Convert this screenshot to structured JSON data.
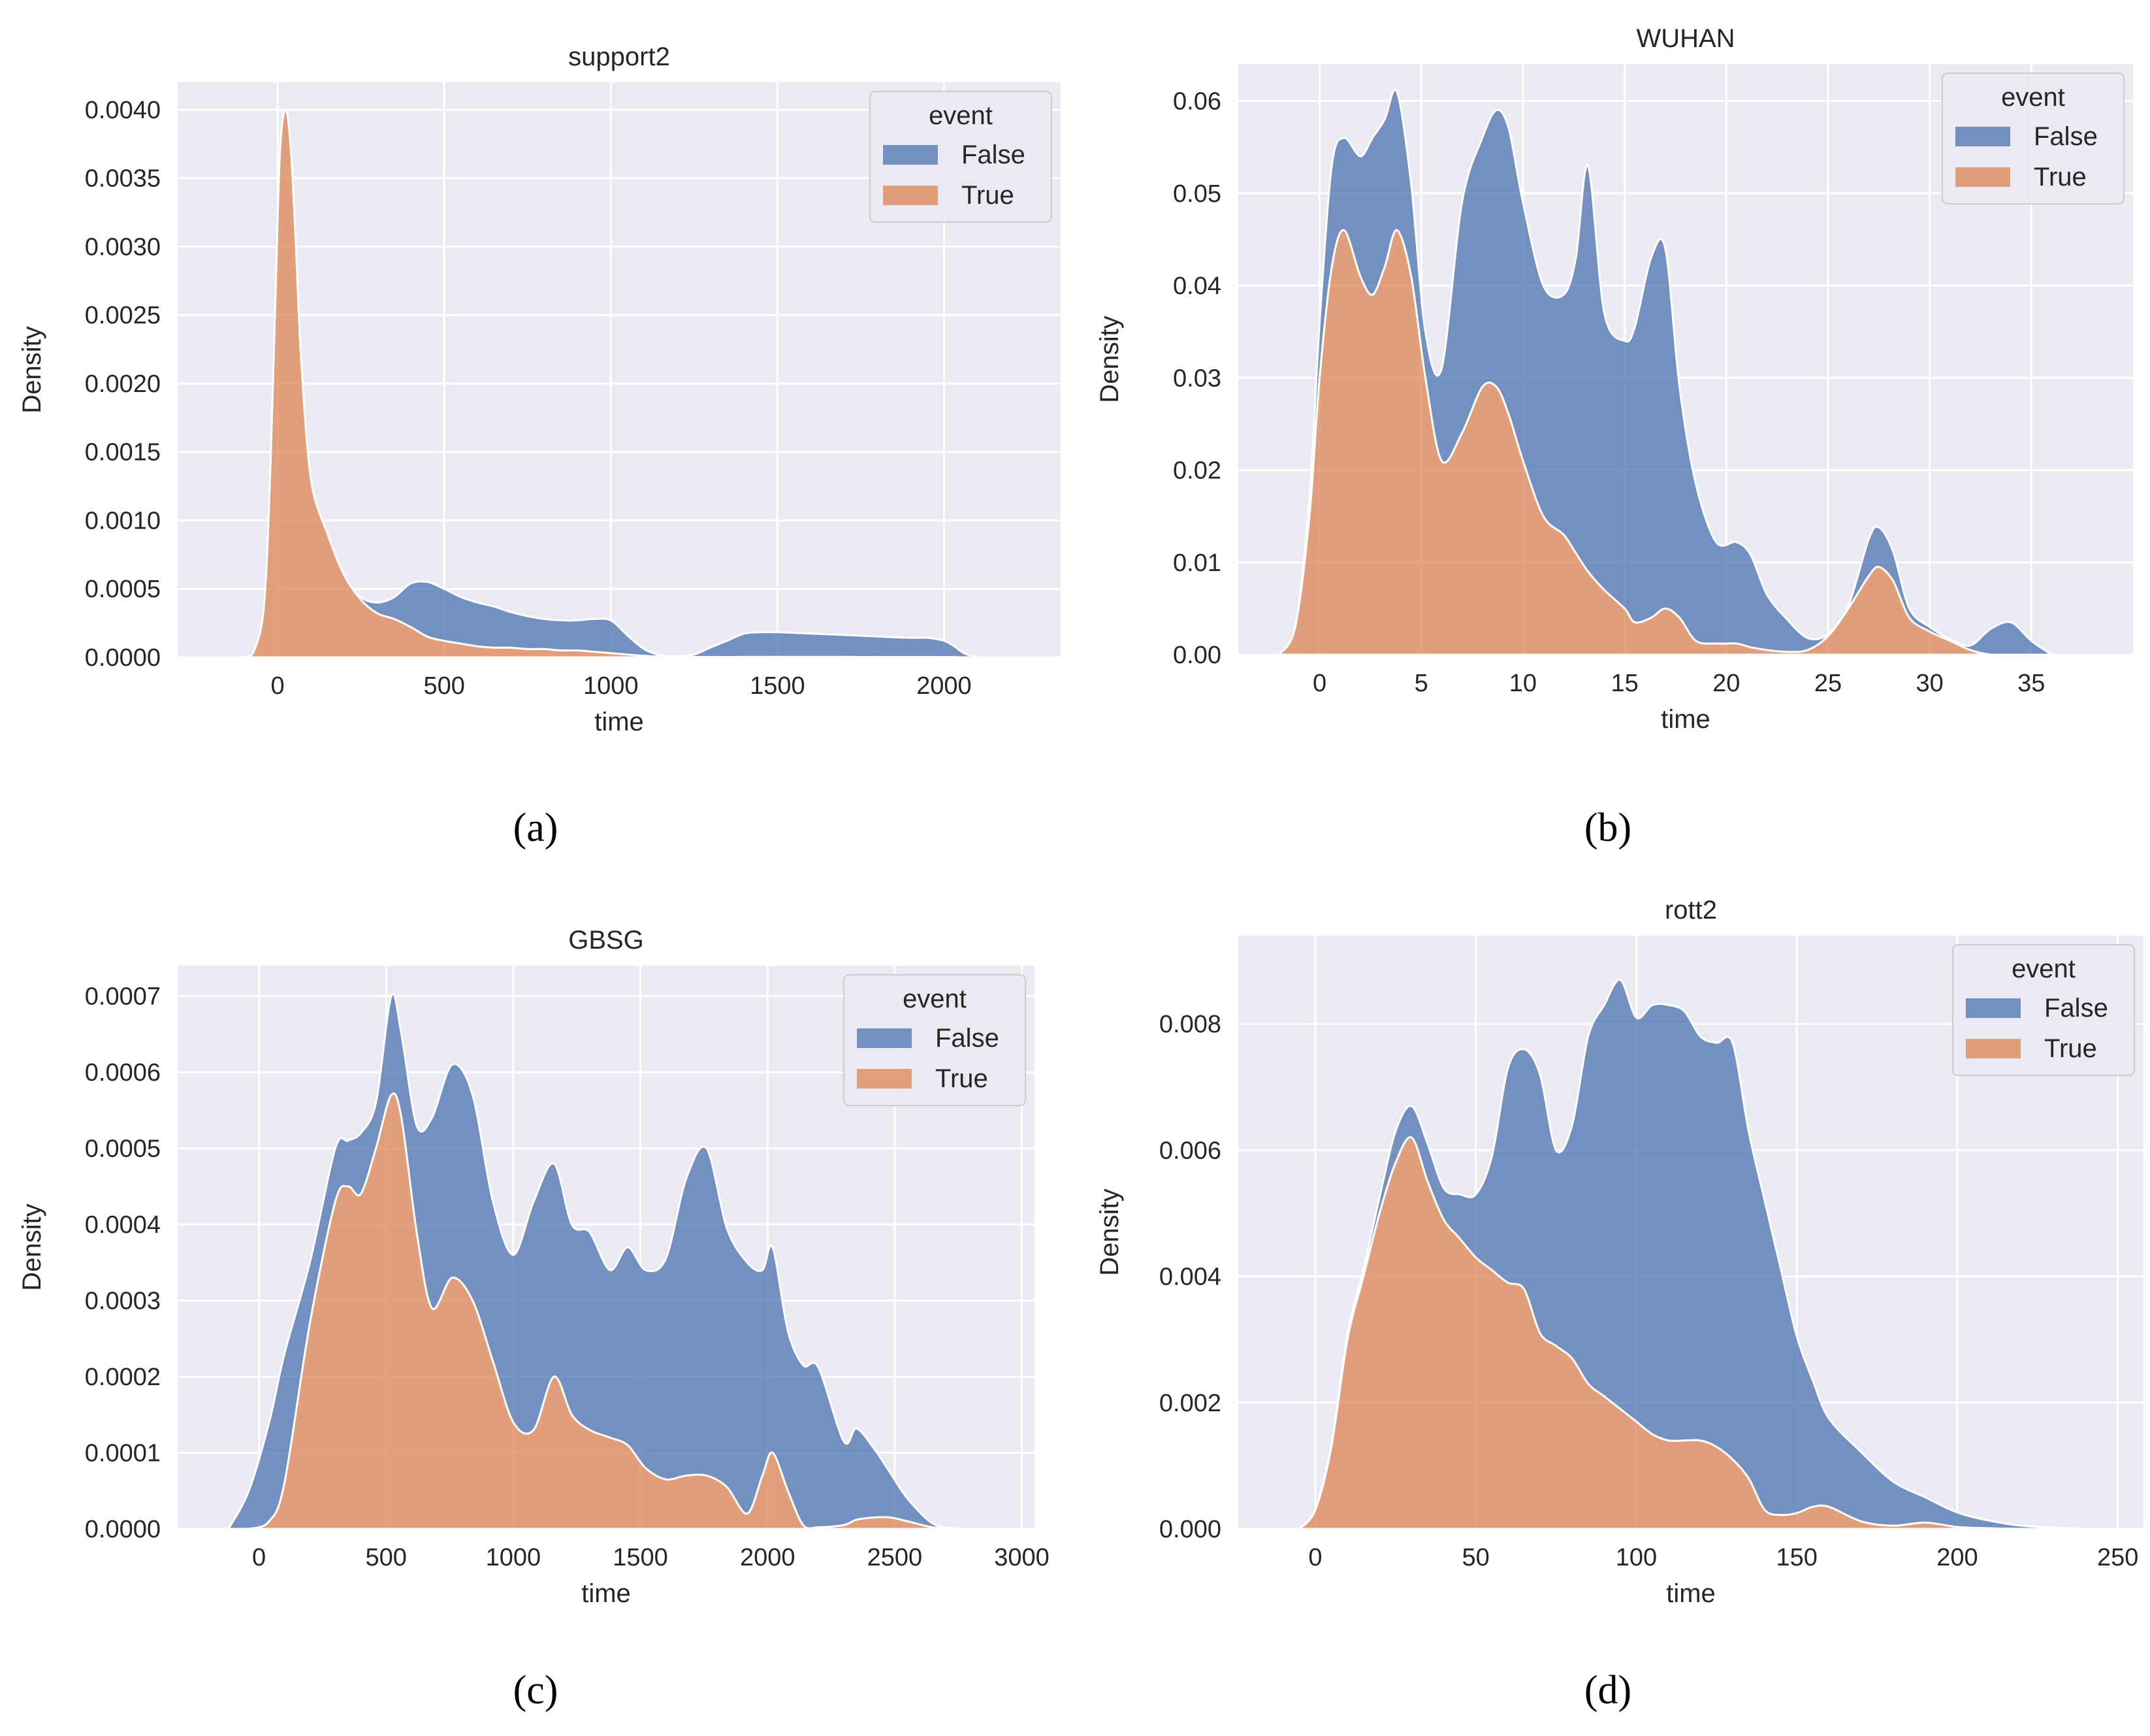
{
  "colors": {
    "background": "#eaeaf2",
    "grid": "#ffffff",
    "false_fill": "#4c72b0",
    "true_fill": "#dd8452",
    "text": "#262626"
  },
  "legend": {
    "title": "event",
    "entries": [
      {
        "label": "False",
        "color": "#4c72b0"
      },
      {
        "label": "True",
        "color": "#dd8452"
      }
    ]
  },
  "captions": [
    "(a)",
    "(b)",
    "(c)",
    "(d)"
  ],
  "chart_data": [
    {
      "type": "area",
      "stacked": true,
      "title": "support2",
      "xlabel": "time",
      "ylabel": "Density",
      "xlim": [
        -300,
        2350
      ],
      "ylim": [
        0,
        0.0042
      ],
      "xticks": [
        0,
        500,
        1000,
        1500,
        2000
      ],
      "xtick_labels": [
        "0",
        "500",
        "1000",
        "1500",
        "2000"
      ],
      "yticks": [
        0,
        0.0005,
        0.001,
        0.0015,
        0.002,
        0.0025,
        0.003,
        0.0035,
        0.004
      ],
      "ytick_labels": [
        "0.0000",
        "0.0005",
        "0.0010",
        "0.0015",
        "0.0020",
        "0.0025",
        "0.0030",
        "0.0035",
        "0.0040"
      ],
      "legend_position": "top-right",
      "x": [
        -100,
        -70,
        -40,
        -20,
        0,
        10,
        25,
        40,
        55,
        70,
        100,
        150,
        200,
        250,
        300,
        350,
        400,
        450,
        500,
        550,
        600,
        650,
        700,
        750,
        800,
        850,
        900,
        950,
        1000,
        1050,
        1100,
        1150,
        1200,
        1250,
        1300,
        1350,
        1400,
        1450,
        1500,
        1600,
        1700,
        1800,
        1900,
        1950,
        2000,
        2030,
        2060,
        2100
      ],
      "series": [
        {
          "name": "True",
          "values": [
            0,
            5e-05,
            0.0004,
            0.0015,
            0.0032,
            0.0038,
            0.004,
            0.0037,
            0.003,
            0.0022,
            0.0013,
            0.0009,
            0.0006,
            0.00042,
            0.00032,
            0.00028,
            0.00022,
            0.00015,
            0.00012,
            0.0001,
            8e-05,
            7e-05,
            7e-05,
            6e-05,
            6e-05,
            5e-05,
            5e-05,
            4e-05,
            3e-05,
            2e-05,
            1e-05,
            5e-06,
            3e-06,
            2e-06,
            2e-06,
            2e-06,
            3e-06,
            3e-06,
            3e-06,
            3e-06,
            3e-06,
            2e-06,
            2e-06,
            2e-06,
            1e-06,
            1e-06,
            0,
            0
          ]
        },
        {
          "name": "False",
          "values": [
            0,
            0,
            0,
            0,
            0,
            0,
            0,
            0,
            0,
            0,
            0,
            0,
            0,
            2e-05,
            8e-05,
            0.00016,
            0.00032,
            0.0004,
            0.00038,
            0.00034,
            0.00032,
            0.0003,
            0.00026,
            0.00024,
            0.00022,
            0.00022,
            0.00022,
            0.00024,
            0.00024,
            0.00014,
            5e-05,
            1e-05,
            5e-06,
            1.8e-05,
            7e-05,
            0.00012,
            0.00017,
            0.00018,
            0.00018,
            0.00017,
            0.00016,
            0.00015,
            0.00014,
            0.00014,
            0.00012,
            8e-05,
            3e-05,
            0
          ]
        }
      ]
    },
    {
      "type": "area",
      "stacked": true,
      "title": "WUHAN",
      "xlabel": "time",
      "ylabel": "Density",
      "xlim": [
        -4,
        40
      ],
      "ylim": [
        0,
        0.064
      ],
      "xticks": [
        0,
        5,
        10,
        15,
        20,
        25,
        30,
        35
      ],
      "xtick_labels": [
        "0",
        "5",
        "10",
        "15",
        "20",
        "25",
        "30",
        "35"
      ],
      "yticks": [
        0,
        0.01,
        0.02,
        0.03,
        0.04,
        0.05,
        0.06
      ],
      "ytick_labels": [
        "0.00",
        "0.01",
        "0.02",
        "0.03",
        "0.04",
        "0.05",
        "0.06"
      ],
      "legend_position": "top-right",
      "x": [
        -2,
        -1.2,
        -0.5,
        0,
        0.6,
        1.2,
        2,
        2.6,
        3.2,
        3.8,
        4.5,
        5.2,
        6,
        7,
        8,
        8.7,
        9.3,
        10,
        11,
        12,
        12.6,
        13.2,
        14,
        15,
        15.5,
        16.3,
        17,
        17.7,
        18.5,
        19.5,
        20.5,
        21.2,
        22,
        23,
        24,
        25,
        26,
        27,
        27.5,
        28.2,
        29,
        30,
        31,
        32,
        33,
        34,
        35,
        36
      ],
      "series": [
        {
          "name": "True",
          "values": [
            0,
            0.003,
            0.015,
            0.03,
            0.042,
            0.046,
            0.041,
            0.039,
            0.042,
            0.046,
            0.041,
            0.03,
            0.021,
            0.024,
            0.029,
            0.029,
            0.026,
            0.021,
            0.015,
            0.013,
            0.011,
            0.009,
            0.007,
            0.005,
            0.0035,
            0.004,
            0.005,
            0.004,
            0.0015,
            0.0012,
            0.0012,
            0.0008,
            0.0005,
            0.0003,
            0.0005,
            0.002,
            0.005,
            0.0085,
            0.0095,
            0.008,
            0.004,
            0.0025,
            0.0015,
            0.0005,
            0,
            0,
            0,
            0
          ]
        },
        {
          "name": "False",
          "values": [
            0,
            0,
            0.002,
            0.006,
            0.011,
            0.01,
            0.013,
            0.017,
            0.016,
            0.015,
            0.01,
            0.005,
            0.01,
            0.025,
            0.027,
            0.03,
            0.031,
            0.028,
            0.025,
            0.026,
            0.032,
            0.044,
            0.03,
            0.029,
            0.032,
            0.039,
            0.039,
            0.025,
            0.017,
            0.011,
            0.011,
            0.01,
            0.006,
            0.0035,
            0.0013,
            0.0002,
            0.0003,
            0.004,
            0.0043,
            0.0032,
            0.001,
            0.0005,
            0.0002,
            0.0005,
            0.0028,
            0.0035,
            0.0015,
            0
          ]
        }
      ]
    },
    {
      "type": "area",
      "stacked": true,
      "title": "GBSG",
      "xlabel": "time",
      "ylabel": "Density",
      "xlim": [
        -320,
        3050
      ],
      "ylim": [
        0,
        0.00074
      ],
      "xticks": [
        0,
        500,
        1000,
        1500,
        2000,
        2500,
        3000
      ],
      "xtick_labels": [
        "0",
        "500",
        "1000",
        "1500",
        "2000",
        "2500",
        "3000"
      ],
      "yticks": [
        0,
        0.0001,
        0.0002,
        0.0003,
        0.0004,
        0.0005,
        0.0006,
        0.0007
      ],
      "ytick_labels": [
        "0.0000",
        "0.0001",
        "0.0002",
        "0.0003",
        "0.0004",
        "0.0005",
        "0.0006",
        "0.0007"
      ],
      "legend_position": "top-right",
      "x": [
        -120,
        -40,
        40,
        100,
        200,
        300,
        350,
        400,
        460,
        520,
        560,
        620,
        680,
        760,
        840,
        920,
        1000,
        1080,
        1160,
        1230,
        1300,
        1380,
        1450,
        1520,
        1600,
        1680,
        1760,
        1840,
        1920,
        1980,
        2020,
        2080,
        2140,
        2200,
        2300,
        2350,
        2420,
        2480,
        2550,
        2650,
        2750
      ],
      "series": [
        {
          "name": "True",
          "values": [
            0,
            0,
            1e-05,
            6e-05,
            0.00027,
            0.00043,
            0.00045,
            0.00044,
            0.0005,
            0.00057,
            0.00054,
            0.00039,
            0.00029,
            0.00033,
            0.0003,
            0.00022,
            0.00014,
            0.00013,
            0.0002,
            0.00015,
            0.00013,
            0.00012,
            0.00011,
            8e-05,
            6.5e-05,
            7e-05,
            7e-05,
            5.5e-05,
            2e-05,
            7e-05,
            0.0001,
            5e-05,
            5e-06,
            2e-06,
            5e-06,
            1.2e-05,
            1.5e-05,
            1.5e-05,
            1e-05,
            2e-06,
            0
          ]
        },
        {
          "name": "False",
          "values": [
            0,
            5e-05,
            0.00013,
            0.00017,
            8e-05,
            7e-05,
            6e-05,
            8e-05,
            6e-05,
            0.00013,
            0.00011,
            0.00014,
            0.00025,
            0.00028,
            0.00027,
            0.00021,
            0.00022,
            0.0003,
            0.00028,
            0.00025,
            0.00026,
            0.00022,
            0.00026,
            0.00026,
            0.00029,
            0.00039,
            0.00043,
            0.00034,
            0.00033,
            0.00027,
            0.00027,
            0.00021,
            0.00021,
            0.00021,
            0.00011,
            0.00012,
            9e-05,
            6e-05,
            3e-05,
            5e-06,
            0
          ]
        }
      ]
    },
    {
      "type": "area",
      "stacked": true,
      "title": "rott2",
      "xlabel": "time",
      "ylabel": "Density",
      "xlim": [
        -24,
        258
      ],
      "ylim": [
        0,
        0.0094
      ],
      "xticks": [
        0,
        50,
        100,
        150,
        200,
        250
      ],
      "xtick_labels": [
        "0",
        "50",
        "100",
        "150",
        "200",
        "250"
      ],
      "yticks": [
        0,
        0.002,
        0.004,
        0.006,
        0.008
      ],
      "ytick_labels": [
        "0.000",
        "0.002",
        "0.004",
        "0.006",
        "0.008"
      ],
      "legend_position": "top-right",
      "x": [
        -5,
        0,
        5,
        10,
        15,
        20,
        25,
        30,
        35,
        40,
        45,
        50,
        55,
        60,
        65,
        70,
        75,
        80,
        85,
        90,
        95,
        100,
        105,
        110,
        115,
        120,
        125,
        130,
        135,
        140,
        145,
        150,
        155,
        160,
        170,
        180,
        190,
        200,
        210,
        220,
        230,
        240
      ],
      "series": [
        {
          "name": "True",
          "values": [
            0,
            0.0003,
            0.0013,
            0.003,
            0.004,
            0.005,
            0.0058,
            0.0062,
            0.0055,
            0.0049,
            0.0046,
            0.0043,
            0.0041,
            0.0039,
            0.0038,
            0.0031,
            0.0029,
            0.0027,
            0.0023,
            0.0021,
            0.0019,
            0.0017,
            0.0015,
            0.0014,
            0.0014,
            0.0014,
            0.0013,
            0.0011,
            0.0008,
            0.0003,
            0.00022,
            0.00025,
            0.00035,
            0.00035,
            0.00012,
            5e-05,
            0.0001,
            3e-05,
            1e-05,
            0,
            0,
            0
          ]
        },
        {
          "name": "False",
          "values": [
            0,
            2e-05,
            4e-05,
            0.0001,
            0.00012,
            0.00025,
            0.0005,
            0.0005,
            0.0006,
            0.0005,
            0.0007,
            0.001,
            0.0018,
            0.0034,
            0.0038,
            0.0041,
            0.0031,
            0.0037,
            0.0055,
            0.0062,
            0.0068,
            0.0064,
            0.0068,
            0.0069,
            0.0068,
            0.0064,
            0.0064,
            0.0066,
            0.0055,
            0.0049,
            0.0039,
            0.0028,
            0.002,
            0.0014,
            0.0011,
            0.0007,
            0.0004,
            0.00023,
            0.00012,
            5e-05,
            2e-05,
            0
          ]
        }
      ]
    }
  ]
}
